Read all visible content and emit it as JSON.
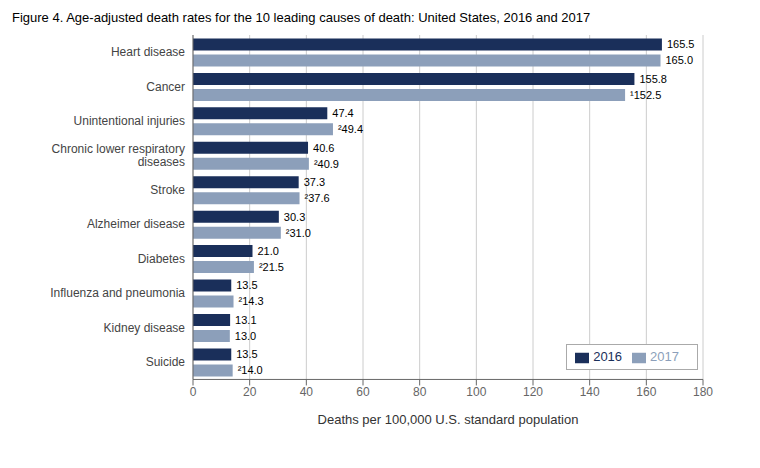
{
  "chart_data": {
    "type": "bar",
    "orientation": "horizontal",
    "title": "Figure 4. Age-adjusted death rates for the 10 leading causes of death: United States, 2016 and 2017",
    "categories": [
      "Heart disease",
      "Cancer",
      "Unintentional injuries",
      "Chronic lower respiratory\n  diseases",
      "Stroke",
      "Alzheimer disease",
      "Diabetes",
      "Influenza and pneumonia",
      "Kidney disease",
      "Suicide"
    ],
    "series": [
      {
        "name": "2016",
        "color": "#1a2f5a",
        "values": [
          165.5,
          155.8,
          47.4,
          40.6,
          37.3,
          30.3,
          21.0,
          13.5,
          13.1,
          13.5
        ],
        "value_labels": [
          "165.5",
          "155.8",
          "47.4",
          "40.6",
          "37.3",
          "30.3",
          "21.0",
          "13.5",
          "13.1",
          "13.5"
        ]
      },
      {
        "name": "2017",
        "color": "#8c9fba",
        "values": [
          165.0,
          152.5,
          49.4,
          40.9,
          37.6,
          31.0,
          21.5,
          14.3,
          13.0,
          14.0
        ],
        "value_labels": [
          "165.0",
          "¹152.5",
          "²49.4",
          "²40.9",
          "²37.6",
          "²31.0",
          "²21.5",
          "²14.3",
          "13.0",
          "²14.0"
        ]
      }
    ],
    "xlabel": "Deaths per 100,000 U.S. standard population",
    "xlim": [
      0,
      180
    ],
    "xticks": [
      0,
      20,
      40,
      60,
      80,
      100,
      120,
      140,
      160,
      180
    ],
    "grid": true,
    "legend": "lower right",
    "data_labels": true
  }
}
